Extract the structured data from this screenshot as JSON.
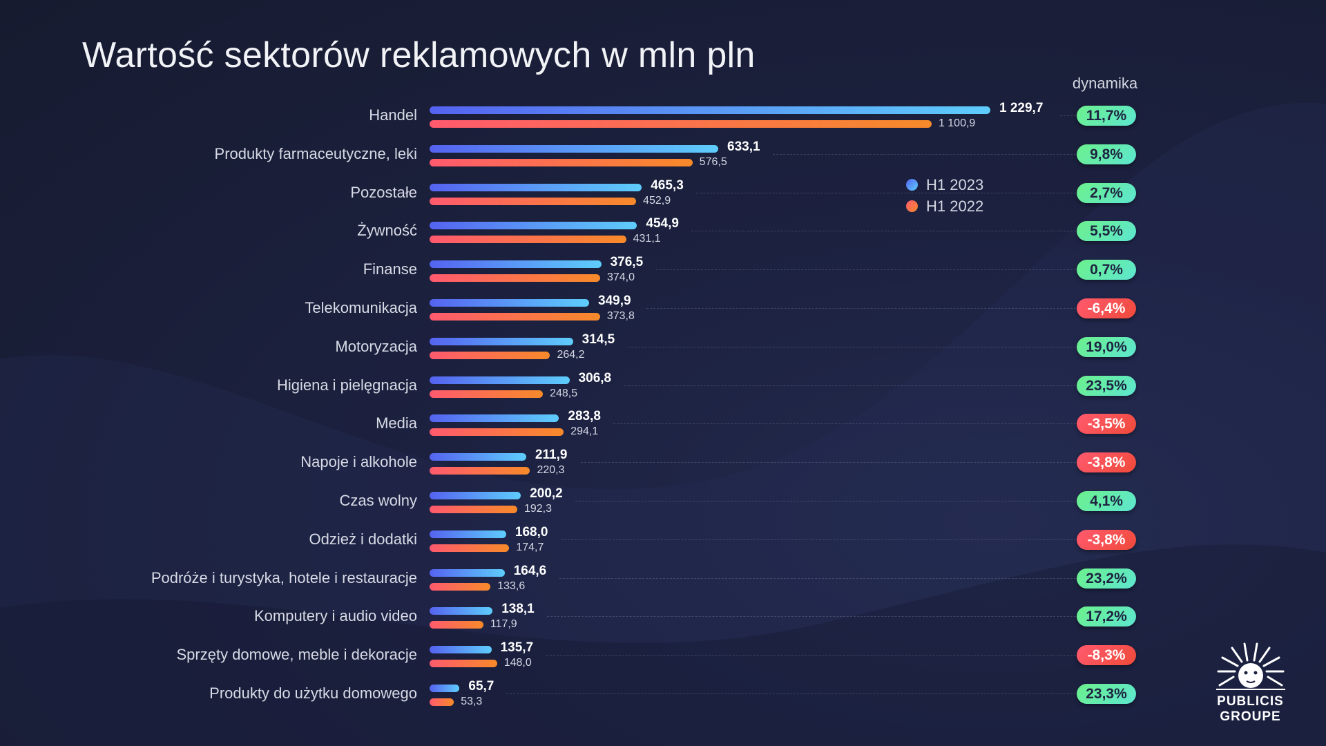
{
  "chart_data": {
    "type": "bar",
    "orientation": "horizontal",
    "title": "Wartość sektorów reklamowych w mln pln",
    "dynamics_header": "dynamika",
    "categories": [
      "Handel",
      "Produkty farmaceutyczne, leki",
      "Pozostałe",
      "Żywność",
      "Finanse",
      "Telekomunikacja",
      "Motoryzacja",
      "Higiena i pielęgnacja",
      "Media",
      "Napoje i alkohole",
      "Czas wolny",
      "Odzież i dodatki",
      "Podróże i turystyka, hotele i restauracje",
      "Komputery i audio video",
      "Sprzęty domowe, meble i dekoracje",
      "Produkty do użytku domowego"
    ],
    "series": [
      {
        "name": "H1 2023",
        "color": "#5ecdfc",
        "values": [
          1229.7,
          633.1,
          465.3,
          454.9,
          376.5,
          349.9,
          314.5,
          306.8,
          283.8,
          211.9,
          200.2,
          168.0,
          164.6,
          138.1,
          135.7,
          65.7
        ],
        "labels": [
          "1 229,7",
          "633,1",
          "465,3",
          "454,9",
          "376,5",
          "349,9",
          "314,5",
          "306,8",
          "283,8",
          "211,9",
          "200,2",
          "168,0",
          "164,6",
          "138,1",
          "135,7",
          "65,7"
        ]
      },
      {
        "name": "H1 2022",
        "color": "#f78a2a",
        "values": [
          1100.9,
          576.5,
          452.9,
          431.1,
          374.0,
          373.8,
          264.2,
          248.5,
          294.1,
          220.3,
          192.3,
          174.7,
          133.6,
          117.9,
          148.0,
          53.3
        ],
        "labels": [
          "1 100,9",
          "576,5",
          "452,9",
          "431,1",
          "374,0",
          "373,8",
          "264,2",
          "248,5",
          "294,1",
          "220,3",
          "192,3",
          "174,7",
          "133,6",
          "117,9",
          "148,0",
          "53,3"
        ]
      }
    ],
    "dynamics": [
      "11,7%",
      "9,8%",
      "2,7%",
      "5,5%",
      "0,7%",
      "-6,4%",
      "19,0%",
      "23,5%",
      "-3,5%",
      "-3,8%",
      "4,1%",
      "-3,8%",
      "23,2%",
      "17,2%",
      "-8,3%",
      "23,3%"
    ],
    "legend_position": "top-right",
    "xlim": [
      0,
      1229.7
    ],
    "grid": false
  },
  "logo": {
    "line1": "PUBLICIS",
    "line2": "GROUPE"
  }
}
